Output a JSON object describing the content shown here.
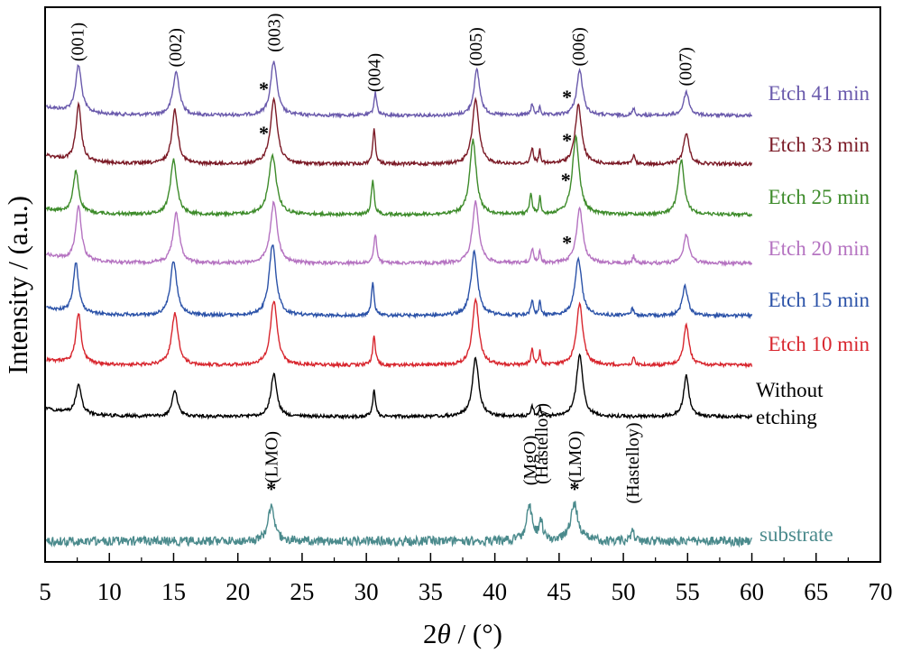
{
  "chart_data": {
    "type": "line",
    "xlabel_prefix": "2",
    "xlabel_symbol": "θ",
    "xlabel_suffix": " / (°)",
    "ylabel": "Intensity / (a.u.)",
    "xlim": [
      5,
      70
    ],
    "x_ticks": [
      5,
      10,
      15,
      20,
      25,
      30,
      35,
      40,
      45,
      50,
      55,
      60,
      65,
      70
    ],
    "grid": false,
    "y_ticks_shown": false,
    "peak_labels": [
      {
        "text": "(001)",
        "x": 7.5
      },
      {
        "text": "(002)",
        "x": 15.1
      },
      {
        "text": "(003)",
        "x": 22.8
      },
      {
        "text": "(004)",
        "x": 30.6
      },
      {
        "text": "(005)",
        "x": 38.5
      },
      {
        "text": "(006)",
        "x": 46.5
      },
      {
        "text": "(007)",
        "x": 54.8
      }
    ],
    "substrate_peak_labels": [
      {
        "text": "(LMO)",
        "x": 22.6
      },
      {
        "text": "(MgO)",
        "x": 42.7
      },
      {
        "text": "(Hastelloy)",
        "x": 43.6
      },
      {
        "text": "(LMO)",
        "x": 46.2
      },
      {
        "text": "(Hastelloy)",
        "x": 50.7
      }
    ],
    "star_marker": "*",
    "series": [
      {
        "name": "Etch 41 min",
        "color": "#6a5aac",
        "baseline": 0.1,
        "stars": [
          22.3,
          45.9
        ],
        "peaks": [
          [
            7.6,
            0.52,
            0.28
          ],
          [
            15.2,
            0.48,
            0.3
          ],
          [
            22.8,
            0.6,
            0.3
          ],
          [
            30.7,
            0.25,
            0.13
          ],
          [
            38.6,
            0.5,
            0.28
          ],
          [
            42.9,
            0.12,
            0.12
          ],
          [
            43.5,
            0.1,
            0.08
          ],
          [
            46.6,
            0.5,
            0.28
          ],
          [
            50.8,
            0.08,
            0.1
          ],
          [
            54.9,
            0.26,
            0.25
          ]
        ]
      },
      {
        "name": "Etch 33 min",
        "color": "#7b1a26",
        "baseline": 0.1,
        "stars": [
          22.3,
          45.9
        ],
        "peaks": [
          [
            7.6,
            0.62,
            0.25
          ],
          [
            15.1,
            0.6,
            0.28
          ],
          [
            22.8,
            0.72,
            0.32
          ],
          [
            30.6,
            0.38,
            0.13
          ],
          [
            38.5,
            0.72,
            0.3
          ],
          [
            42.9,
            0.18,
            0.12
          ],
          [
            43.5,
            0.16,
            0.08
          ],
          [
            46.5,
            0.65,
            0.3
          ],
          [
            50.8,
            0.1,
            0.1
          ],
          [
            54.9,
            0.35,
            0.25
          ]
        ]
      },
      {
        "name": "Etch 25 min",
        "color": "#3d8b2a",
        "baseline": 0.06,
        "stars": [
          45.8
        ],
        "peaks": [
          [
            7.4,
            0.42,
            0.25
          ],
          [
            15.0,
            0.55,
            0.3
          ],
          [
            22.7,
            0.6,
            0.35
          ],
          [
            30.5,
            0.35,
            0.13
          ],
          [
            38.3,
            0.75,
            0.3
          ],
          [
            42.8,
            0.2,
            0.12
          ],
          [
            43.5,
            0.18,
            0.08
          ],
          [
            46.3,
            0.78,
            0.32
          ],
          [
            54.5,
            0.55,
            0.28
          ]
        ]
      },
      {
        "name": "Etch 20 min",
        "color": "#b573c1",
        "baseline": 0.1,
        "stars": [
          45.9
        ],
        "peaks": [
          [
            7.6,
            0.6,
            0.26
          ],
          [
            15.2,
            0.55,
            0.3
          ],
          [
            22.8,
            0.68,
            0.32
          ],
          [
            30.7,
            0.32,
            0.13
          ],
          [
            38.5,
            0.68,
            0.3
          ],
          [
            42.9,
            0.16,
            0.12
          ],
          [
            43.5,
            0.15,
            0.08
          ],
          [
            46.6,
            0.6,
            0.3
          ],
          [
            50.8,
            0.08,
            0.1
          ],
          [
            54.9,
            0.32,
            0.25
          ]
        ]
      },
      {
        "name": "Etch 15 min",
        "color": "#2b52a8",
        "baseline": 0.08,
        "stars": [],
        "peaks": [
          [
            7.4,
            0.5,
            0.25
          ],
          [
            15.0,
            0.55,
            0.3
          ],
          [
            22.7,
            0.72,
            0.32
          ],
          [
            30.5,
            0.35,
            0.12
          ],
          [
            38.4,
            0.65,
            0.3
          ],
          [
            42.9,
            0.16,
            0.12
          ],
          [
            43.5,
            0.14,
            0.08
          ],
          [
            46.5,
            0.58,
            0.3
          ],
          [
            50.7,
            0.08,
            0.1
          ],
          [
            54.8,
            0.3,
            0.25
          ]
        ]
      },
      {
        "name": "Etch 10 min",
        "color": "#d8262e",
        "baseline": 0.06,
        "stars": [],
        "peaks": [
          [
            7.6,
            0.52,
            0.25
          ],
          [
            15.1,
            0.55,
            0.3
          ],
          [
            22.8,
            0.68,
            0.32
          ],
          [
            30.6,
            0.3,
            0.13
          ],
          [
            38.5,
            0.7,
            0.3
          ],
          [
            42.9,
            0.16,
            0.12
          ],
          [
            43.5,
            0.14,
            0.08
          ],
          [
            46.6,
            0.65,
            0.3
          ],
          [
            50.8,
            0.08,
            0.1
          ],
          [
            54.9,
            0.42,
            0.25
          ]
        ]
      },
      {
        "name": "Without etching",
        "name_lines": [
          "Without",
          "etching"
        ],
        "color": "#000000",
        "baseline": 0.1,
        "stars": [],
        "peaks": [
          [
            7.6,
            0.35,
            0.25
          ],
          [
            15.1,
            0.3,
            0.25
          ],
          [
            22.8,
            0.5,
            0.28
          ],
          [
            30.6,
            0.3,
            0.13
          ],
          [
            38.5,
            0.68,
            0.3
          ],
          [
            42.9,
            0.12,
            0.12
          ],
          [
            43.5,
            0.1,
            0.08
          ],
          [
            46.6,
            0.72,
            0.3
          ],
          [
            54.9,
            0.48,
            0.25
          ]
        ]
      },
      {
        "name": "substrate",
        "color": "#4a8a8c",
        "baseline": 0.0,
        "stars": [
          22.6,
          46.2
        ],
        "peaks": [
          [
            22.6,
            0.35,
            0.3
          ],
          [
            42.7,
            0.32,
            0.3
          ],
          [
            43.6,
            0.18,
            0.15
          ],
          [
            46.2,
            0.35,
            0.35
          ],
          [
            50.7,
            0.15,
            0.12
          ]
        ]
      }
    ]
  }
}
